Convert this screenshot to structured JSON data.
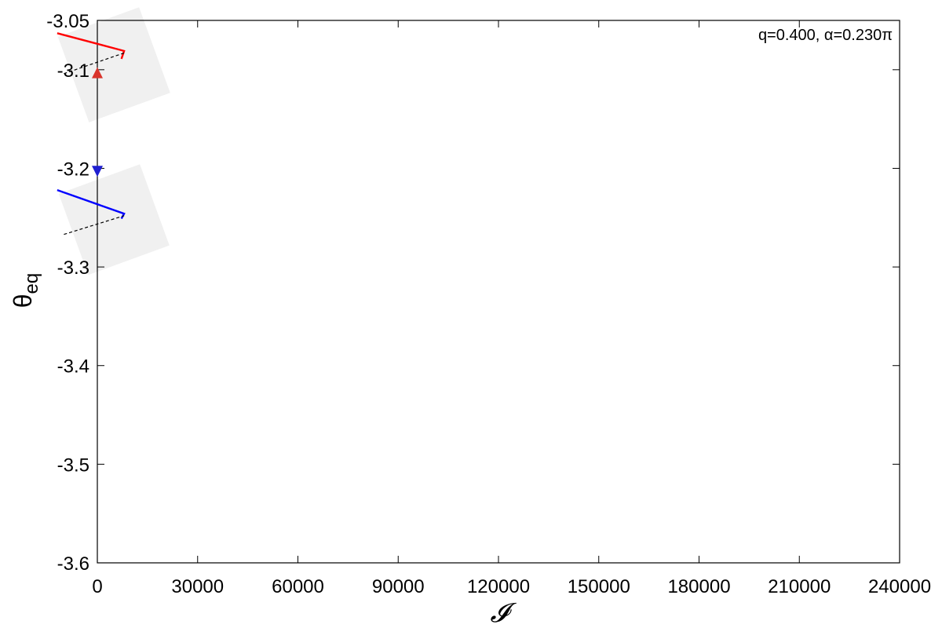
{
  "chart_data": {
    "type": "line",
    "title": "",
    "xlabel": "𝓘",
    "ylabel_main": "θ",
    "ylabel_sub": "eq",
    "annotation": "q=0.400, α=0.230π",
    "xlim": [
      0,
      240000
    ],
    "ylim": [
      -3.6,
      -3.05
    ],
    "xticks": [
      0,
      30000,
      60000,
      90000,
      120000,
      150000,
      180000,
      210000,
      240000
    ],
    "xtick_labels": [
      "0",
      "30000",
      "60000",
      "90000",
      "120000",
      "150000",
      "180000",
      "210000",
      "240000"
    ],
    "yticks": [
      -3.6,
      -3.5,
      -3.4,
      -3.3,
      -3.2,
      -3.1,
      -3.05
    ],
    "ytick_labels": [
      "-3.6",
      "-3.5",
      "-3.4",
      "-3.3",
      "-3.2",
      "-3.1",
      "-3.05"
    ],
    "grid": false,
    "series": [
      {
        "color": "#ff0000",
        "style": "solid",
        "x": [
          -12000,
          8000,
          7200
        ],
        "y": [
          -3.063,
          -3.081,
          -3.089
        ]
      },
      {
        "color": "#000000",
        "style": "dashed",
        "x": [
          -10000,
          8000
        ],
        "y": [
          -3.104,
          -3.083
        ]
      },
      {
        "color": "#0000ff",
        "style": "solid",
        "x": [
          -12000,
          8000,
          7200
        ],
        "y": [
          -3.222,
          -3.246,
          -3.251
        ]
      },
      {
        "color": "#000000",
        "style": "dashed",
        "x": [
          -10000,
          8000
        ],
        "y": [
          -3.267,
          -3.248
        ]
      }
    ],
    "markers": [
      {
        "shape": "triangle-up",
        "color": "#d9342b",
        "x": 0,
        "y": -3.103
      },
      {
        "shape": "triangle-down",
        "color": "#1f1fd1",
        "x": 0,
        "y": -3.203
      }
    ],
    "shading": [
      {
        "color": "#f0f0f0",
        "x": 5000,
        "y": -3.095,
        "half_width": 55,
        "half_height": 58,
        "angle": -20
      },
      {
        "color": "#f0f0f0",
        "x": 5000,
        "y": -3.252,
        "half_width": 55,
        "half_height": 55,
        "angle": -20
      }
    ]
  }
}
